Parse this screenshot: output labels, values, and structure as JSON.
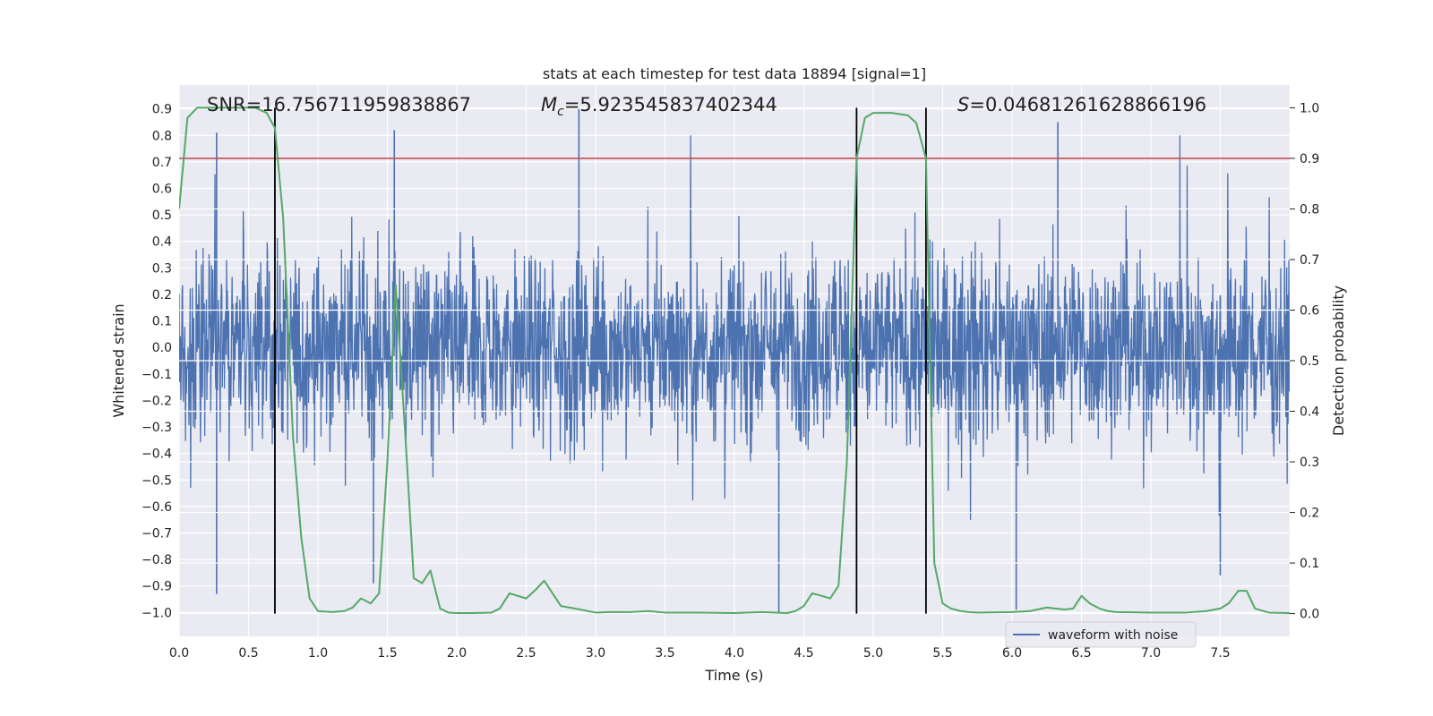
{
  "chart_data": {
    "type": "line",
    "title": "stats at each timestep for test data 18894 [signal=1]",
    "xlabel": "Time (s)",
    "ylabel": "Whitened strain",
    "y2label": "Detection probability",
    "xlim": [
      0.0,
      8.0
    ],
    "ylim": [
      -1.09,
      0.99
    ],
    "y2lim": [
      -0.045,
      1.045
    ],
    "xticks": [
      "0.0",
      "0.5",
      "1.0",
      "1.5",
      "2.0",
      "2.5",
      "3.0",
      "3.5",
      "4.0",
      "4.5",
      "5.0",
      "5.5",
      "6.0",
      "6.5",
      "7.0",
      "7.5"
    ],
    "xtick_values": [
      0.0,
      0.5,
      1.0,
      1.5,
      2.0,
      2.5,
      3.0,
      3.5,
      4.0,
      4.5,
      5.0,
      5.5,
      6.0,
      6.5,
      7.0,
      7.5
    ],
    "yticks": [
      "0.9",
      "0.8",
      "0.7",
      "0.6",
      "0.5",
      "0.4",
      "0.3",
      "0.2",
      "0.1",
      "0.0",
      "−0.1",
      "−0.2",
      "−0.3",
      "−0.4",
      "−0.5",
      "−0.6",
      "−0.7",
      "−0.8",
      "−0.9",
      "−1.0"
    ],
    "ytick_values": [
      0.9,
      0.8,
      0.7,
      0.6,
      0.5,
      0.4,
      0.3,
      0.2,
      0.1,
      0.0,
      -0.1,
      -0.2,
      -0.3,
      -0.4,
      -0.5,
      -0.6,
      -0.7,
      -0.8,
      -0.9,
      -1.0
    ],
    "y2ticks": [
      "1.0",
      "0.9",
      "0.8",
      "0.7",
      "0.6",
      "0.5",
      "0.4",
      "0.3",
      "0.2",
      "0.1",
      "0.0"
    ],
    "y2tick_values": [
      1.0,
      0.9,
      0.8,
      0.7,
      0.6,
      0.5,
      0.4,
      0.3,
      0.2,
      0.1,
      0.0
    ],
    "grid": true,
    "legend": {
      "location": "lower-right",
      "entries": [
        "waveform with noise"
      ]
    },
    "annotations": {
      "snr": "SNR=16.756711959838867",
      "mc_symbol": "M",
      "mc_subscript": "c",
      "mc_value": "=5.923545837402344",
      "s_symbol": "S",
      "s_value": "=0.04681261628866196"
    },
    "waveform": {
      "name": "waveform with noise",
      "color": "#4c72b0",
      "core_envelope": [
        -0.45,
        0.45
      ],
      "notable_peaks": [
        {
          "x": 0.27,
          "y": 0.81
        },
        {
          "x": 1.55,
          "y": 0.82
        },
        {
          "x": 2.88,
          "y": 0.9
        },
        {
          "x": 6.33,
          "y": 0.85
        },
        {
          "x": 0.27,
          "y": -0.93
        },
        {
          "x": 1.4,
          "y": -0.89
        },
        {
          "x": 4.32,
          "y": -1.0
        },
        {
          "x": 6.03,
          "y": -0.99
        },
        {
          "x": 7.5,
          "y": -0.86
        }
      ]
    },
    "threshold_line": {
      "y2": 0.9,
      "color": "#c44e52"
    },
    "event_markers": {
      "x": [
        0.69,
        4.88,
        5.38
      ],
      "color": "#000000"
    },
    "probability_series": {
      "name": "detection probability",
      "color": "#55a868",
      "x": [
        0.0,
        0.06,
        0.13,
        0.25,
        0.4,
        0.55,
        0.63,
        0.69,
        0.75,
        0.82,
        0.88,
        0.94,
        1.0,
        1.1,
        1.19,
        1.25,
        1.31,
        1.38,
        1.44,
        1.5,
        1.56,
        1.63,
        1.69,
        1.75,
        1.81,
        1.88,
        1.94,
        2.0,
        2.1,
        2.25,
        2.31,
        2.38,
        2.44,
        2.5,
        2.56,
        2.63,
        2.69,
        2.75,
        2.85,
        3.0,
        3.1,
        3.25,
        3.38,
        3.5,
        3.75,
        4.0,
        4.2,
        4.38,
        4.44,
        4.5,
        4.56,
        4.63,
        4.69,
        4.75,
        4.81,
        4.88,
        4.94,
        5.0,
        5.13,
        5.25,
        5.31,
        5.38,
        5.44,
        5.5,
        5.56,
        5.63,
        5.69,
        5.75,
        6.0,
        6.13,
        6.25,
        6.31,
        6.38,
        6.44,
        6.5,
        6.56,
        6.63,
        6.69,
        6.75,
        7.0,
        7.25,
        7.4,
        7.5,
        7.56,
        7.63,
        7.69,
        7.75,
        7.85,
        8.0
      ],
      "y": [
        0.8,
        0.98,
        1.0,
        1.0,
        1.0,
        1.0,
        0.99,
        0.96,
        0.78,
        0.35,
        0.15,
        0.03,
        0.005,
        0.003,
        0.005,
        0.012,
        0.03,
        0.02,
        0.04,
        0.3,
        0.65,
        0.35,
        0.07,
        0.06,
        0.085,
        0.01,
        0.002,
        0.001,
        0.001,
        0.002,
        0.01,
        0.04,
        0.035,
        0.03,
        0.045,
        0.065,
        0.04,
        0.015,
        0.01,
        0.002,
        0.003,
        0.003,
        0.005,
        0.002,
        0.002,
        0.001,
        0.003,
        0.001,
        0.005,
        0.015,
        0.04,
        0.035,
        0.03,
        0.055,
        0.3,
        0.9,
        0.98,
        0.99,
        0.99,
        0.985,
        0.97,
        0.9,
        0.1,
        0.02,
        0.01,
        0.005,
        0.003,
        0.002,
        0.003,
        0.005,
        0.012,
        0.01,
        0.008,
        0.01,
        0.035,
        0.02,
        0.01,
        0.005,
        0.003,
        0.002,
        0.002,
        0.005,
        0.01,
        0.02,
        0.045,
        0.045,
        0.01,
        0.002,
        0.001
      ]
    }
  }
}
